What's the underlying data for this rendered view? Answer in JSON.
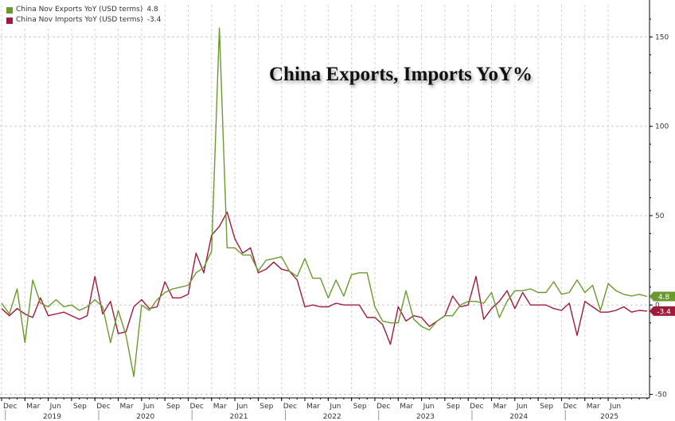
{
  "legend": {
    "exports_label": "China Nov Exports YoY (USD terms)",
    "exports_value": "4.8",
    "imports_label": "China Nov Imports YoY (USD terms)",
    "imports_value": "-3.4"
  },
  "chart_data": {
    "type": "line",
    "title": "China Exports, Imports YoY%",
    "xlabel": "",
    "ylabel": "",
    "ylim": [
      -52,
      168
    ],
    "yticks": [
      -50,
      0,
      50,
      100,
      150
    ],
    "grid": true,
    "legend_position": "top-left",
    "x_tick_labels": [
      "Dec",
      "Mar",
      "Jun",
      "Sep",
      "Dec",
      "Mar",
      "Jun",
      "Sep",
      "Dec",
      "Mar",
      "Jun",
      "Sep",
      "Dec",
      "Mar",
      "Jun",
      "Sep",
      "Dec",
      "Mar",
      "Jun",
      "Sep",
      "Dec",
      "Mar",
      "Jun",
      "Sep",
      "Dec",
      "Mar",
      "Jun"
    ],
    "year_labels": [
      "2019",
      "2020",
      "2021",
      "2022",
      "2023",
      "2024",
      "2025"
    ],
    "x": [
      "2018-12",
      "2019-01",
      "2019-02",
      "2019-03",
      "2019-04",
      "2019-05",
      "2019-06",
      "2019-07",
      "2019-08",
      "2019-09",
      "2019-10",
      "2019-11",
      "2019-12",
      "2020-01",
      "2020-02",
      "2020-03",
      "2020-04",
      "2020-05",
      "2020-06",
      "2020-07",
      "2020-08",
      "2020-09",
      "2020-10",
      "2020-11",
      "2020-12",
      "2021-01",
      "2021-02",
      "2021-03",
      "2021-04",
      "2021-05",
      "2021-06",
      "2021-07",
      "2021-08",
      "2021-09",
      "2021-10",
      "2021-11",
      "2021-12",
      "2022-01",
      "2022-02",
      "2022-03",
      "2022-04",
      "2022-05",
      "2022-06",
      "2022-07",
      "2022-08",
      "2022-09",
      "2022-10",
      "2022-11",
      "2022-12",
      "2023-01",
      "2023-02",
      "2023-03",
      "2023-04",
      "2023-05",
      "2023-06",
      "2023-07",
      "2023-08",
      "2023-09",
      "2023-10",
      "2023-11",
      "2023-12",
      "2024-01",
      "2024-02",
      "2024-03",
      "2024-04",
      "2024-05",
      "2024-06",
      "2024-07",
      "2024-08",
      "2024-09",
      "2024-10",
      "2024-11",
      "2024-12",
      "2025-01",
      "2025-02",
      "2025-03",
      "2025-04",
      "2025-05",
      "2025-06",
      "2025-07",
      "2025-08",
      "2025-09",
      "2025-10",
      "2025-11"
    ],
    "series": [
      {
        "name": "China Nov Exports YoY (USD terms)",
        "color": "#6a9a2e",
        "last_value_label": "4.8",
        "values": [
          1,
          -5,
          9,
          -21,
          14,
          1,
          -1,
          3,
          -1,
          0,
          -3,
          -1,
          3,
          -1,
          -21,
          -3,
          -17,
          -40,
          0,
          -3,
          3,
          7,
          9,
          10,
          11,
          18,
          21,
          30,
          155,
          32,
          32,
          28,
          28,
          19,
          25,
          26,
          27,
          19,
          16,
          26,
          15,
          15,
          4,
          14,
          5,
          17,
          18,
          18,
          -1,
          -9,
          -10,
          -10,
          8,
          -8,
          -12,
          -14,
          -9,
          -6,
          -6,
          0,
          2,
          2,
          1,
          7,
          -7,
          2,
          8,
          8,
          9,
          7,
          7,
          13,
          6,
          7,
          14,
          7,
          11,
          -3,
          12,
          8,
          6,
          5,
          6,
          4.8
        ]
      },
      {
        "name": "China Nov Imports YoY (USD terms)",
        "color": "#9e1b3c",
        "last_value_label": "-3.4",
        "values": [
          -2,
          -6,
          -2,
          -5,
          -7,
          4,
          -6,
          -5,
          -4,
          -6,
          -8,
          -6,
          16,
          -5,
          2,
          -16,
          -15,
          -1,
          3,
          -2,
          -1,
          13,
          4,
          4,
          6,
          29,
          18,
          39,
          44,
          52,
          37,
          29,
          32,
          18,
          20,
          24,
          20,
          19,
          14,
          -1,
          0,
          -1,
          -1,
          1,
          0,
          0,
          0,
          -7,
          -7,
          -11,
          -22,
          -1,
          -9,
          -6,
          -7,
          -12,
          -9,
          -6,
          5,
          -1,
          0,
          16,
          -8,
          -2,
          2,
          8,
          -2,
          7,
          0,
          0,
          0,
          -2,
          -3,
          1,
          -17,
          2,
          -1,
          -4,
          -4,
          -3,
          -1,
          -4,
          -3,
          -3.4
        ]
      }
    ]
  }
}
